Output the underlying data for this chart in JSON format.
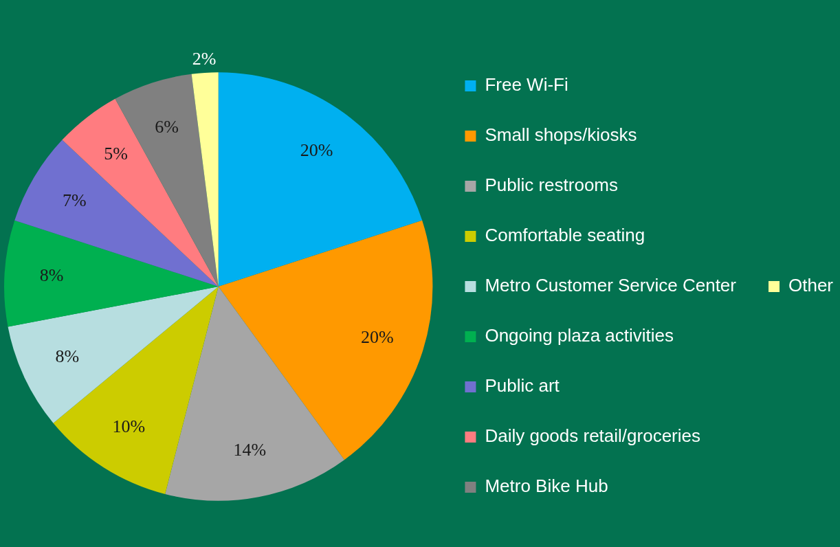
{
  "chart_data": {
    "type": "pie",
    "categories": [
      "Free Wi-Fi",
      "Small shops/kiosks",
      "Public restrooms",
      "Comfortable seating",
      "Metro Customer Service Center",
      "Ongoing plaza activities",
      "Public art",
      "Daily goods retail/groceries",
      "Metro Bike Hub",
      "Other"
    ],
    "values": [
      20,
      20,
      14,
      10,
      8,
      8,
      7,
      5,
      6,
      2
    ],
    "value_labels": [
      "20%",
      "20%",
      "14%",
      "10%",
      "8%",
      "8%",
      "7%",
      "5%",
      "6%",
      "2%"
    ],
    "colors": [
      "#00b0f0",
      "#ff9900",
      "#a6a6a6",
      "#cccc00",
      "#b7dee0",
      "#00b050",
      "#7070d0",
      "#ff7c80",
      "#808080",
      "#ffff99"
    ],
    "legend": "right"
  }
}
